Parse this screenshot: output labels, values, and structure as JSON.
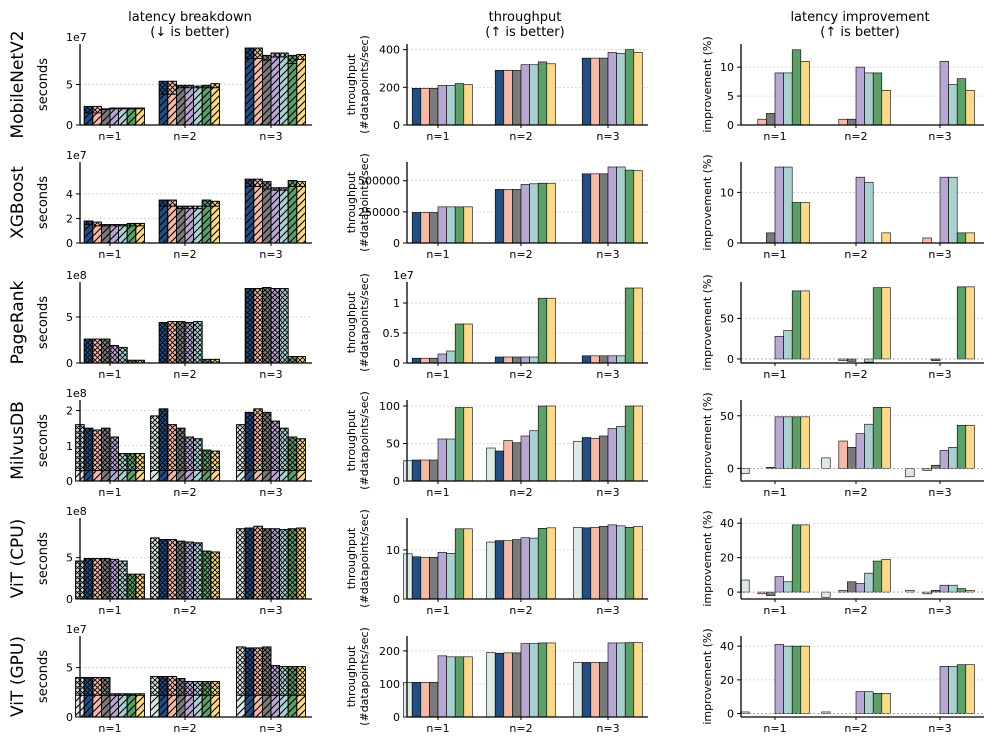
{
  "figure": {
    "column_titles": [
      [
        "latency breakdown",
        "(↓ is better)"
      ],
      [
        "throughput",
        "(↑ is better)"
      ],
      [
        "latency improvement",
        "(↑ is better)"
      ]
    ],
    "row_titles": [
      "MobileNetV2",
      "XGBoost",
      "PageRank",
      "MilvusDB",
      "ViT (CPU)",
      "ViT (GPU)"
    ],
    "categories": [
      "n=1",
      "n=2",
      "n=3"
    ],
    "series_colors": [
      "#dce9e6",
      "#244e82",
      "#f6b9a8",
      "#7a7a7a",
      "#b9a7d3",
      "#a9d1d0",
      "#5e9e67",
      "#fbd98b"
    ],
    "column_y_labels": {
      "latency": [
        "seconds"
      ],
      "throughput": [
        "throughput",
        "(#datapoints/sec)"
      ],
      "improvement": [
        "improvement (%)"
      ]
    }
  },
  "chart_data": [
    {
      "title": "MobileNetV2",
      "type": "bar",
      "panels": [
        {
          "column": "latency breakdown",
          "type": "stacked-bar",
          "ylabel": "seconds",
          "exponent": "1e7",
          "ylim": [
            0,
            10
          ],
          "yticks": [
            0,
            5
          ],
          "totals": [
            [
              0,
              2.3,
              2.3,
              2.0,
              2.1,
              2.1,
              2.1,
              2.1
            ],
            [
              0,
              5.4,
              5.4,
              4.9,
              4.9,
              4.8,
              4.9,
              5.1
            ],
            [
              0,
              9.5,
              9.5,
              8.6,
              8.9,
              8.9,
              8.6,
              8.7
            ]
          ],
          "lower": [
            [
              0,
              1.5,
              1.5,
              1.9,
              2.0,
              2.0,
              2.0,
              2.0
            ],
            [
              0,
              3.8,
              3.8,
              4.6,
              4.6,
              4.6,
              4.6,
              4.6
            ],
            [
              0,
              8.2,
              8.2,
              8.0,
              8.4,
              8.4,
              7.6,
              8.1
            ]
          ]
        },
        {
          "column": "throughput",
          "type": "bar",
          "ylabel": "throughput (#datapoints/sec)",
          "ylim": [
            0,
            430
          ],
          "yticks": [
            0,
            200,
            400
          ],
          "values": [
            [
              0,
              195,
              195,
              195,
              210,
              210,
              220,
              215
            ],
            [
              0,
              290,
              290,
              290,
              320,
              320,
              335,
              325
            ],
            [
              0,
              355,
              355,
              355,
              385,
              380,
              400,
              385
            ]
          ]
        },
        {
          "column": "latency improvement",
          "type": "bar",
          "ylabel": "improvement (%)",
          "ylim": [
            0,
            14
          ],
          "yticks": [
            0,
            5,
            10
          ],
          "values": [
            [
              0,
              0,
              1,
              2,
              9,
              9,
              13,
              11
            ],
            [
              0,
              0,
              1,
              1,
              10,
              9,
              9,
              6
            ],
            [
              0,
              0,
              0,
              0,
              11,
              7,
              8,
              6
            ]
          ]
        }
      ]
    },
    {
      "title": "XGBoost",
      "type": "bar",
      "panels": [
        {
          "column": "latency breakdown",
          "type": "stacked-bar",
          "ylabel": "seconds",
          "exponent": "1e7",
          "ylim": [
            0,
            6.6
          ],
          "yticks": [
            0,
            2,
            4
          ],
          "totals": [
            [
              0,
              1.8,
              1.7,
              1.5,
              1.5,
              1.5,
              1.6,
              1.6
            ],
            [
              0,
              3.5,
              3.5,
              3.0,
              3.0,
              3.0,
              3.5,
              3.4
            ],
            [
              0,
              5.2,
              5.2,
              5.0,
              4.5,
              4.5,
              5.1,
              5.0
            ]
          ],
          "lower": [
            [
              0,
              1.5,
              1.4,
              1.4,
              1.4,
              1.4,
              1.4,
              1.4
            ],
            [
              0,
              3.0,
              3.0,
              2.8,
              2.8,
              2.8,
              3.0,
              3.0
            ],
            [
              0,
              4.6,
              4.6,
              4.4,
              4.3,
              4.3,
              4.6,
              4.6
            ]
          ]
        },
        {
          "column": "throughput",
          "type": "bar",
          "ylabel": "throughput (#datapoints/sec)",
          "ylim": [
            0,
            650000
          ],
          "yticks": [
            0,
            250000,
            500000
          ],
          "values": [
            [
              0,
              245000,
              245000,
              245000,
              290000,
              290000,
              290000,
              290000
            ],
            [
              0,
              430000,
              430000,
              430000,
              470000,
              475000,
              480000,
              480000
            ],
            [
              0,
              555000,
              555000,
              555000,
              610000,
              610000,
              585000,
              580000
            ]
          ]
        },
        {
          "column": "latency improvement",
          "type": "bar",
          "ylabel": "improvement (%)",
          "ylim": [
            0,
            16
          ],
          "yticks": [
            0,
            10
          ],
          "values": [
            [
              0,
              0,
              0,
              2,
              15,
              15,
              8,
              8
            ],
            [
              0,
              0,
              0,
              0,
              13,
              12,
              0,
              2
            ],
            [
              0,
              0,
              1,
              0,
              13,
              13,
              2,
              2
            ]
          ]
        }
      ]
    },
    {
      "title": "PageRank",
      "type": "bar",
      "panels": [
        {
          "column": "latency breakdown",
          "type": "stacked-bar",
          "ylabel": "seconds",
          "exponent": "1e8",
          "ylim": [
            0,
            8.8
          ],
          "yticks": [
            0,
            5
          ],
          "totals": [
            [
              0,
              2.6,
              2.6,
              2.6,
              1.9,
              1.7,
              0.3,
              0.3
            ],
            [
              0,
              4.4,
              4.5,
              4.5,
              4.4,
              4.5,
              0.4,
              0.4
            ],
            [
              0,
              8.1,
              8.1,
              8.2,
              8.1,
              8.1,
              0.7,
              0.7
            ]
          ],
          "lower": [
            [
              0,
              0,
              0,
              0,
              0,
              0,
              0,
              0
            ],
            [
              0,
              0,
              0,
              0,
              0,
              0,
              0,
              0
            ],
            [
              0,
              0,
              0,
              0,
              0,
              0,
              0,
              0
            ]
          ]
        },
        {
          "column": "throughput",
          "type": "bar",
          "ylabel": "throughput (#datapoints/sec)",
          "exponent": "1e7",
          "ylim": [
            0,
            1.35
          ],
          "yticks": [
            0.0,
            0.5,
            1.0
          ],
          "values": [
            [
              0,
              0.08,
              0.08,
              0.08,
              0.15,
              0.2,
              0.65,
              0.65
            ],
            [
              0,
              0.1,
              0.1,
              0.1,
              0.1,
              0.1,
              1.08,
              1.08
            ],
            [
              0,
              0.12,
              0.12,
              0.12,
              0.12,
              0.12,
              1.25,
              1.25
            ]
          ]
        },
        {
          "column": "latency improvement",
          "type": "bar",
          "ylabel": "improvement (%)",
          "ylim": [
            -5,
            95
          ],
          "yticks": [
            0,
            50
          ],
          "values": [
            [
              0,
              0,
              0,
              0,
              28,
              35,
              84,
              84
            ],
            [
              0,
              0,
              -2,
              -3,
              0,
              -4,
              88,
              88
            ],
            [
              0,
              0,
              0,
              -2,
              0,
              0,
              89,
              89
            ]
          ]
        }
      ]
    },
    {
      "title": "MilvusDB",
      "type": "bar",
      "panels": [
        {
          "column": "latency breakdown",
          "type": "stacked-bar",
          "ylabel": "seconds",
          "exponent": "1e8",
          "ylim": [
            0,
            2.3
          ],
          "yticks": [
            0,
            1,
            2
          ],
          "totals": [
            [
              1.6,
              1.5,
              1.45,
              1.5,
              1.25,
              0.78,
              0.78,
              0.78
            ],
            [
              1.85,
              2.05,
              1.6,
              1.5,
              1.25,
              1.2,
              0.88,
              0.85
            ],
            [
              1.6,
              1.95,
              2.05,
              1.95,
              1.7,
              1.5,
              1.25,
              1.2
            ]
          ],
          "lower": [
            [
              0.3,
              0.3,
              0.3,
              0.3,
              0.3,
              0.3,
              0.3,
              0.3
            ],
            [
              0.3,
              0.3,
              0.3,
              0.3,
              0.3,
              0.3,
              0.3,
              0.3
            ],
            [
              0.3,
              0.3,
              0.3,
              0.3,
              0.3,
              0.3,
              0.3,
              0.3
            ]
          ]
        },
        {
          "column": "throughput",
          "type": "bar",
          "ylabel": "throughput (#datapoints/sec)",
          "ylim": [
            0,
            108
          ],
          "yticks": [
            0,
            50,
            100
          ],
          "values": [
            [
              27,
              28,
              28,
              28,
              56,
              56,
              98,
              98
            ],
            [
              44,
              40,
              54,
              51,
              60,
              67,
              100,
              100
            ],
            [
              53,
              58,
              57,
              60,
              70,
              73,
              100,
              100
            ]
          ]
        },
        {
          "column": "latency improvement",
          "type": "bar",
          "ylabel": "improvement (%)",
          "ylim": [
            -12,
            65
          ],
          "yticks": [
            0,
            50
          ],
          "values": [
            [
              -5,
              0,
              0,
              1,
              49,
              49,
              49,
              49
            ],
            [
              10,
              0,
              26,
              20,
              33,
              42,
              58,
              58
            ],
            [
              -8,
              0,
              -2,
              3,
              17,
              20,
              41,
              41
            ]
          ]
        }
      ]
    },
    {
      "title": "ViT (CPU)",
      "type": "bar",
      "panels": [
        {
          "column": "latency breakdown",
          "type": "stacked-bar",
          "ylabel": "seconds",
          "exponent": "1e8",
          "ylim": [
            0,
            9.8
          ],
          "yticks": [
            0,
            5
          ],
          "totals": [
            [
              4.6,
              4.9,
              4.9,
              4.9,
              4.8,
              4.6,
              3.0,
              3.0
            ],
            [
              7.4,
              7.2,
              7.2,
              7.0,
              6.9,
              6.8,
              5.8,
              5.7
            ],
            [
              8.5,
              8.6,
              8.8,
              8.5,
              8.5,
              8.4,
              8.5,
              8.6
            ]
          ],
          "lower": [
            [
              0,
              0,
              0,
              0,
              0,
              0,
              0,
              0
            ],
            [
              0,
              0,
              0,
              0,
              0,
              0,
              0,
              0
            ],
            [
              0,
              0,
              0,
              0,
              0,
              0,
              0,
              0
            ]
          ]
        },
        {
          "column": "throughput",
          "type": "bar",
          "ylabel": "throughput (#datapoints/sec)",
          "ylim": [
            0,
            16.5
          ],
          "yticks": [
            0,
            10
          ],
          "values": [
            [
              9.2,
              8.6,
              8.5,
              8.5,
              9.5,
              9.3,
              14.3,
              14.3
            ],
            [
              11.6,
              11.9,
              11.9,
              12.1,
              12.5,
              12.4,
              14.4,
              14.5
            ],
            [
              14.6,
              14.5,
              14.6,
              14.8,
              15.1,
              14.9,
              14.6,
              14.8
            ]
          ]
        },
        {
          "column": "latency improvement",
          "type": "bar",
          "ylabel": "improvement (%)",
          "ylim": [
            -4,
            43
          ],
          "yticks": [
            0,
            20,
            40
          ],
          "values": [
            [
              7,
              0,
              -1,
              -2,
              9,
              6,
              39,
              39
            ],
            [
              -3,
              0,
              1,
              6,
              5,
              11,
              18,
              19
            ],
            [
              1,
              0,
              -1,
              1,
              4,
              4,
              2,
              1
            ]
          ]
        }
      ]
    },
    {
      "title": "ViT (GPU)",
      "type": "bar",
      "panels": [
        {
          "column": "latency breakdown",
          "type": "stacked-bar",
          "ylabel": "seconds",
          "exponent": "1e7",
          "ylim": [
            0,
            8.2
          ],
          "yticks": [
            0,
            5
          ],
          "totals": [
            [
              4.0,
              4.0,
              4.0,
              4.0,
              2.35,
              2.35,
              2.35,
              2.35
            ],
            [
              4.1,
              4.1,
              4.1,
              3.9,
              3.6,
              3.6,
              3.6,
              3.6
            ],
            [
              7.1,
              7.0,
              7.0,
              7.1,
              5.2,
              5.1,
              5.1,
              5.1
            ]
          ],
          "lower": [
            [
              2.2,
              2.2,
              2.2,
              2.2,
              2.2,
              2.2,
              2.2,
              2.2
            ],
            [
              2.2,
              2.2,
              2.2,
              2.2,
              2.2,
              2.2,
              2.2,
              2.2
            ],
            [
              2.2,
              2.2,
              2.2,
              2.2,
              2.2,
              2.2,
              2.2,
              2.2
            ]
          ]
        },
        {
          "column": "throughput",
          "type": "bar",
          "ylabel": "throughput (#datapoints/sec)",
          "ylim": [
            0,
            245
          ],
          "yticks": [
            0,
            100,
            200
          ],
          "values": [
            [
              105,
              105,
              105,
              105,
              185,
              182,
              182,
              182
            ],
            [
              195,
              193,
              194,
              194,
              222,
              222,
              224,
              224
            ],
            [
              165,
              165,
              165,
              165,
              224,
              224,
              225,
              225
            ]
          ]
        },
        {
          "column": "latency improvement",
          "type": "bar",
          "ylabel": "improvement (%)",
          "ylim": [
            -2,
            46
          ],
          "yticks": [
            0,
            20,
            40
          ],
          "values": [
            [
              1,
              0,
              0,
              0,
              41,
              40,
              40,
              40
            ],
            [
              1,
              0,
              0,
              0,
              13,
              13,
              12,
              12
            ],
            [
              0,
              0,
              0,
              0,
              28,
              28,
              29,
              29
            ]
          ]
        }
      ]
    }
  ]
}
